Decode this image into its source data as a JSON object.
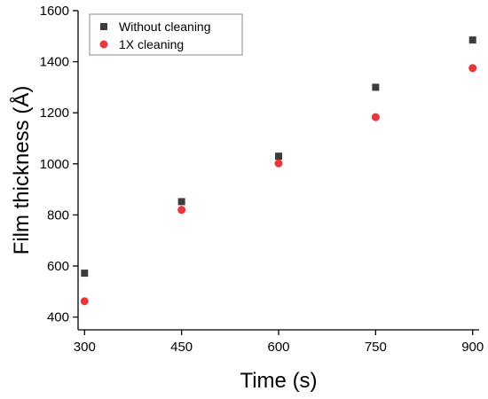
{
  "chart_data": {
    "type": "scatter",
    "title": "",
    "xlabel": "Time (s)",
    "ylabel": "Film thickness (Å)",
    "xlim": [
      290,
      910
    ],
    "ylim": [
      350,
      1600
    ],
    "xticks": [
      300,
      450,
      600,
      750,
      900
    ],
    "yticks": [
      400,
      600,
      800,
      1000,
      1200,
      1400,
      1600
    ],
    "grid": false,
    "legend_position": "top-left",
    "series": [
      {
        "name": "Without cleaning",
        "marker": "square",
        "color": "#3c3c3c",
        "x": [
          300,
          450,
          600,
          750,
          900
        ],
        "y": [
          572,
          852,
          1030,
          1300,
          1485
        ]
      },
      {
        "name": "1X cleaning",
        "marker": "circle",
        "color": "#e8373a",
        "x": [
          300,
          450,
          600,
          750,
          900
        ],
        "y": [
          462,
          820,
          1002,
          1183,
          1375
        ]
      }
    ]
  }
}
